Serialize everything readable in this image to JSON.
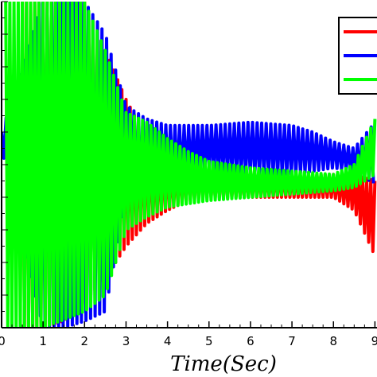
{
  "chart_data": {
    "type": "line",
    "xlabel": "Time(Sec)",
    "xlim": [
      0,
      9.05
    ],
    "xticks": [
      0,
      1,
      2,
      3,
      4,
      5,
      6,
      7,
      8,
      9
    ],
    "xtick_labels": [
      "0",
      "1",
      "2",
      "3",
      "4",
      "5",
      "6",
      "7",
      "8",
      "9"
    ],
    "ylim": [
      0,
      1
    ],
    "grid": false,
    "legend_position": "top-right",
    "series": [
      {
        "color": "#ff0000",
        "envelope": [
          [
            0.5,
            0.0,
            1.0
          ],
          [
            1.0,
            0.0,
            1.0
          ],
          [
            1.5,
            0.02,
            1.0
          ],
          [
            2.0,
            0.08,
            1.0
          ],
          [
            2.5,
            0.15,
            0.85
          ],
          [
            3.0,
            0.25,
            0.7
          ],
          [
            3.5,
            0.32,
            0.58
          ],
          [
            4.0,
            0.36,
            0.52
          ],
          [
            4.5,
            0.39,
            0.5
          ],
          [
            5.0,
            0.4,
            0.48
          ],
          [
            6.0,
            0.4,
            0.48
          ],
          [
            7.0,
            0.4,
            0.47
          ],
          [
            8.0,
            0.4,
            0.47
          ],
          [
            8.5,
            0.36,
            0.47
          ],
          [
            9.0,
            0.22,
            0.45
          ]
        ],
        "period": 0.1
      },
      {
        "color": "#0000ff",
        "envelope": [
          [
            0.0,
            0.55,
            0.6
          ],
          [
            1.0,
            0.0,
            1.0
          ],
          [
            1.5,
            0.0,
            1.0
          ],
          [
            2.0,
            0.02,
            1.0
          ],
          [
            2.5,
            0.05,
            0.9
          ],
          [
            3.0,
            0.4,
            0.68
          ],
          [
            3.5,
            0.42,
            0.64
          ],
          [
            4.0,
            0.44,
            0.62
          ],
          [
            4.5,
            0.46,
            0.62
          ],
          [
            5.0,
            0.48,
            0.62
          ],
          [
            6.0,
            0.47,
            0.63
          ],
          [
            7.0,
            0.47,
            0.62
          ],
          [
            7.5,
            0.48,
            0.6
          ],
          [
            8.0,
            0.49,
            0.57
          ],
          [
            8.5,
            0.48,
            0.55
          ],
          [
            9.0,
            0.44,
            0.63
          ]
        ],
        "period": 0.11
      },
      {
        "color": "#00ff00",
        "envelope": [
          [
            0.1,
            0.0,
            1.0
          ],
          [
            1.0,
            0.0,
            1.0
          ],
          [
            2.0,
            0.05,
            1.0
          ],
          [
            2.5,
            0.1,
            0.85
          ],
          [
            3.0,
            0.3,
            0.66
          ],
          [
            3.5,
            0.34,
            0.63
          ],
          [
            4.0,
            0.37,
            0.58
          ],
          [
            4.5,
            0.38,
            0.54
          ],
          [
            5.0,
            0.39,
            0.51
          ],
          [
            6.0,
            0.4,
            0.49
          ],
          [
            7.0,
            0.41,
            0.48
          ],
          [
            8.0,
            0.42,
            0.47
          ],
          [
            8.5,
            0.43,
            0.5
          ],
          [
            9.0,
            0.47,
            0.64
          ]
        ],
        "period": 0.1
      }
    ]
  }
}
